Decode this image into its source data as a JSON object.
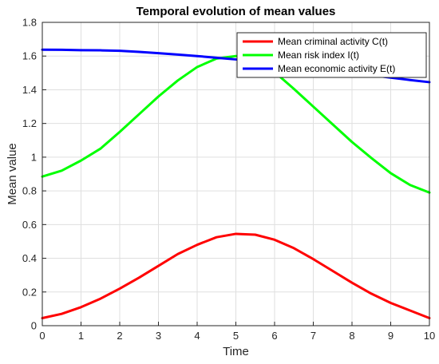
{
  "chart_data": {
    "type": "line",
    "title": "Temporal evolution of mean values",
    "xlabel": "Time",
    "ylabel": "Mean value",
    "xlim": [
      0,
      10
    ],
    "ylim": [
      0,
      1.8
    ],
    "xticks": [
      "0",
      "1",
      "2",
      "3",
      "4",
      "5",
      "6",
      "7",
      "8",
      "9",
      "10"
    ],
    "yticks": [
      "0",
      "0.2",
      "0.4",
      "0.6",
      "0.8",
      "1",
      "1.2",
      "1.4",
      "1.6",
      "1.8"
    ],
    "grid": true,
    "legend_position": "top-right",
    "x": [
      0,
      0.5,
      1,
      1.5,
      2,
      2.5,
      3,
      3.5,
      4,
      4.5,
      5,
      5.5,
      6,
      6.5,
      7,
      7.5,
      8,
      8.5,
      9,
      9.5,
      10
    ],
    "series": [
      {
        "name": "Mean criminal activity C(t)",
        "color": "#ff0000",
        "values": [
          0.045,
          0.07,
          0.11,
          0.16,
          0.22,
          0.285,
          0.355,
          0.425,
          0.48,
          0.525,
          0.545,
          0.54,
          0.51,
          0.46,
          0.395,
          0.325,
          0.255,
          0.19,
          0.135,
          0.09,
          0.045
        ]
      },
      {
        "name": "Mean risk index I(t)",
        "color": "#00ff00",
        "values": [
          0.885,
          0.92,
          0.98,
          1.05,
          1.15,
          1.255,
          1.36,
          1.455,
          1.535,
          1.585,
          1.6,
          1.58,
          1.505,
          1.405,
          1.3,
          1.195,
          1.09,
          0.995,
          0.905,
          0.835,
          0.79
        ]
      },
      {
        "name": "Mean economic activity E(t)",
        "color": "#0000ff",
        "values": [
          1.638,
          1.637,
          1.635,
          1.634,
          1.631,
          1.625,
          1.617,
          1.609,
          1.6,
          1.59,
          1.58,
          1.569,
          1.557,
          1.544,
          1.53,
          1.516,
          1.501,
          1.486,
          1.472,
          1.458,
          1.445
        ]
      }
    ]
  }
}
